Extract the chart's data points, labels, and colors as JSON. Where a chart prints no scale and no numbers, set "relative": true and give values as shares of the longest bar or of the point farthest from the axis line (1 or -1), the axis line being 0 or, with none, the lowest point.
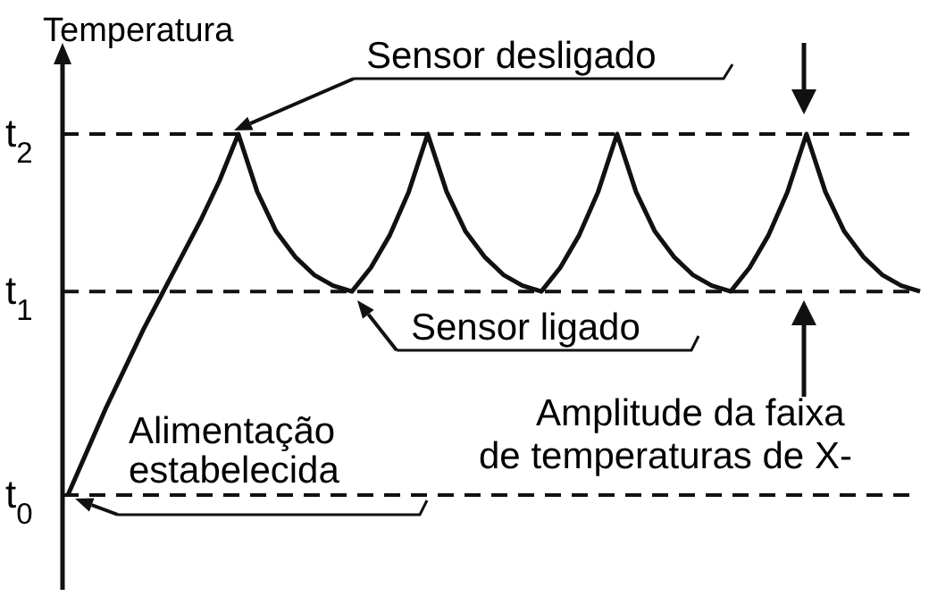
{
  "chart_data": {
    "type": "line",
    "relative": true,
    "ylabel": "Temperatura",
    "line_style": "solid",
    "marker": "none",
    "categories": [
      null,
      null,
      null,
      null,
      null,
      null,
      null,
      null,
      null,
      null,
      null,
      null,
      null,
      null,
      null,
      null,
      null,
      null,
      null,
      null,
      null,
      null,
      null,
      null,
      null,
      null,
      null,
      null,
      null,
      null,
      null,
      null,
      null,
      null,
      null,
      null,
      null,
      null,
      null,
      null,
      null,
      null,
      null,
      null,
      null,
      null
    ],
    "series": [
      {
        "color": "#111111",
        "values": [
          0,
          0.12,
          0.24,
          0.35,
          0.46,
          0.56,
          0.66,
          0.76,
          0.87,
          1,
          0.84,
          0.73,
          0.66,
          0.61,
          0.58,
          0.564,
          0.63,
          0.72,
          0.84,
          1,
          0.84,
          0.73,
          0.66,
          0.61,
          0.58,
          0.564,
          0.63,
          0.72,
          0.84,
          1,
          0.84,
          0.73,
          0.66,
          0.61,
          0.58,
          0.564,
          0.63,
          0.72,
          0.84,
          1,
          0.84,
          0.73,
          0.66,
          0.61,
          0.58,
          0.564
        ]
      }
    ],
    "ref_lines": [
      {
        "axis": "y",
        "value": 1,
        "label": "t$_{2}$",
        "line_style": "dashed"
      },
      {
        "axis": "y",
        "value": 0.564,
        "label": "t$_{1}$",
        "line_style": "dashed"
      },
      {
        "axis": "y",
        "value": 0,
        "label": "t$_{0}$",
        "line_style": "dashed"
      }
    ],
    "annotations": [
      "Sensor desligado",
      "Sensor ligado",
      "Amplitude da faixa de temperaturas de X-",
      "Alimentação estabelecida"
    ]
  }
}
